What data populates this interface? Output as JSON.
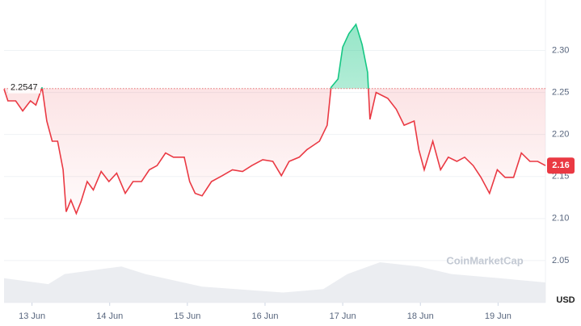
{
  "chart_data": {
    "type": "line",
    "baseline": 2.2547,
    "baseline_label": "2.2547",
    "last_price_label": "2.16",
    "unit": "USD",
    "watermark": "CoinMarketCap",
    "up_color": "#16c784",
    "down_color": "#ea3943",
    "grid": true,
    "xlim": [
      12.64,
      19.61
    ],
    "xticks": [
      {
        "value": 13,
        "label": "13 Jun"
      },
      {
        "value": 14,
        "label": "14 Jun"
      },
      {
        "value": 15,
        "label": "15 Jun"
      },
      {
        "value": 16,
        "label": "16 Jun"
      },
      {
        "value": 17,
        "label": "17 Jun"
      },
      {
        "value": 18,
        "label": "18 Jun"
      },
      {
        "value": 19,
        "label": "19 Jun"
      }
    ],
    "ylim": [
      2.0,
      2.36
    ],
    "yticks": [
      {
        "value": 2.05,
        "label": "2.05"
      },
      {
        "value": 2.1,
        "label": "2.10"
      },
      {
        "value": 2.15,
        "label": "2.15"
      },
      {
        "value": 2.2,
        "label": "2.20"
      },
      {
        "value": 2.25,
        "label": "2.25"
      },
      {
        "value": 2.3,
        "label": "2.30"
      }
    ],
    "x": [
      12.64,
      12.69,
      12.79,
      12.88,
      12.98,
      13.05,
      13.13,
      13.19,
      13.26,
      13.33,
      13.4,
      13.44,
      13.5,
      13.57,
      13.63,
      13.71,
      13.79,
      13.89,
      13.99,
      14.09,
      14.2,
      14.3,
      14.41,
      14.51,
      14.61,
      14.72,
      14.82,
      14.96,
      15.03,
      15.1,
      15.19,
      15.31,
      15.45,
      15.58,
      15.71,
      15.83,
      15.97,
      16.1,
      16.21,
      16.31,
      16.44,
      16.54,
      16.7,
      16.8,
      16.85,
      16.94,
      17.0,
      17.08,
      17.17,
      17.25,
      17.32,
      17.35,
      17.43,
      17.58,
      17.69,
      17.79,
      17.92,
      17.98,
      18.05,
      18.16,
      18.26,
      18.36,
      18.47,
      18.57,
      18.68,
      18.78,
      18.89,
      18.99,
      19.09,
      19.2,
      19.3,
      19.41,
      19.51,
      19.61
    ],
    "values": [
      2.254,
      2.24,
      2.24,
      2.228,
      2.24,
      2.235,
      2.256,
      2.216,
      2.192,
      2.192,
      2.158,
      2.108,
      2.122,
      2.106,
      2.12,
      2.144,
      2.134,
      2.156,
      2.144,
      2.154,
      2.13,
      2.144,
      2.144,
      2.158,
      2.163,
      2.178,
      2.173,
      2.173,
      2.144,
      2.13,
      2.127,
      2.144,
      2.151,
      2.158,
      2.156,
      2.163,
      2.17,
      2.168,
      2.151,
      2.168,
      2.173,
      2.182,
      2.192,
      2.211,
      2.256,
      2.266,
      2.304,
      2.32,
      2.331,
      2.307,
      2.274,
      2.218,
      2.25,
      2.243,
      2.23,
      2.211,
      2.216,
      2.182,
      2.158,
      2.192,
      2.158,
      2.173,
      2.168,
      2.173,
      2.163,
      2.149,
      2.13,
      2.158,
      2.149,
      2.149,
      2.178,
      2.168,
      2.168,
      2.163
    ],
    "volume": {
      "x": [
        12.64,
        13.21,
        13.42,
        14.15,
        14.46,
        15.19,
        16.23,
        16.75,
        17.06,
        17.48,
        17.98,
        18.4,
        19.02,
        19.61
      ],
      "values": [
        2.029,
        2.022,
        2.034,
        2.043,
        2.034,
        2.019,
        2.012,
        2.016,
        2.034,
        2.048,
        2.043,
        2.034,
        2.029,
        2.024
      ]
    }
  }
}
